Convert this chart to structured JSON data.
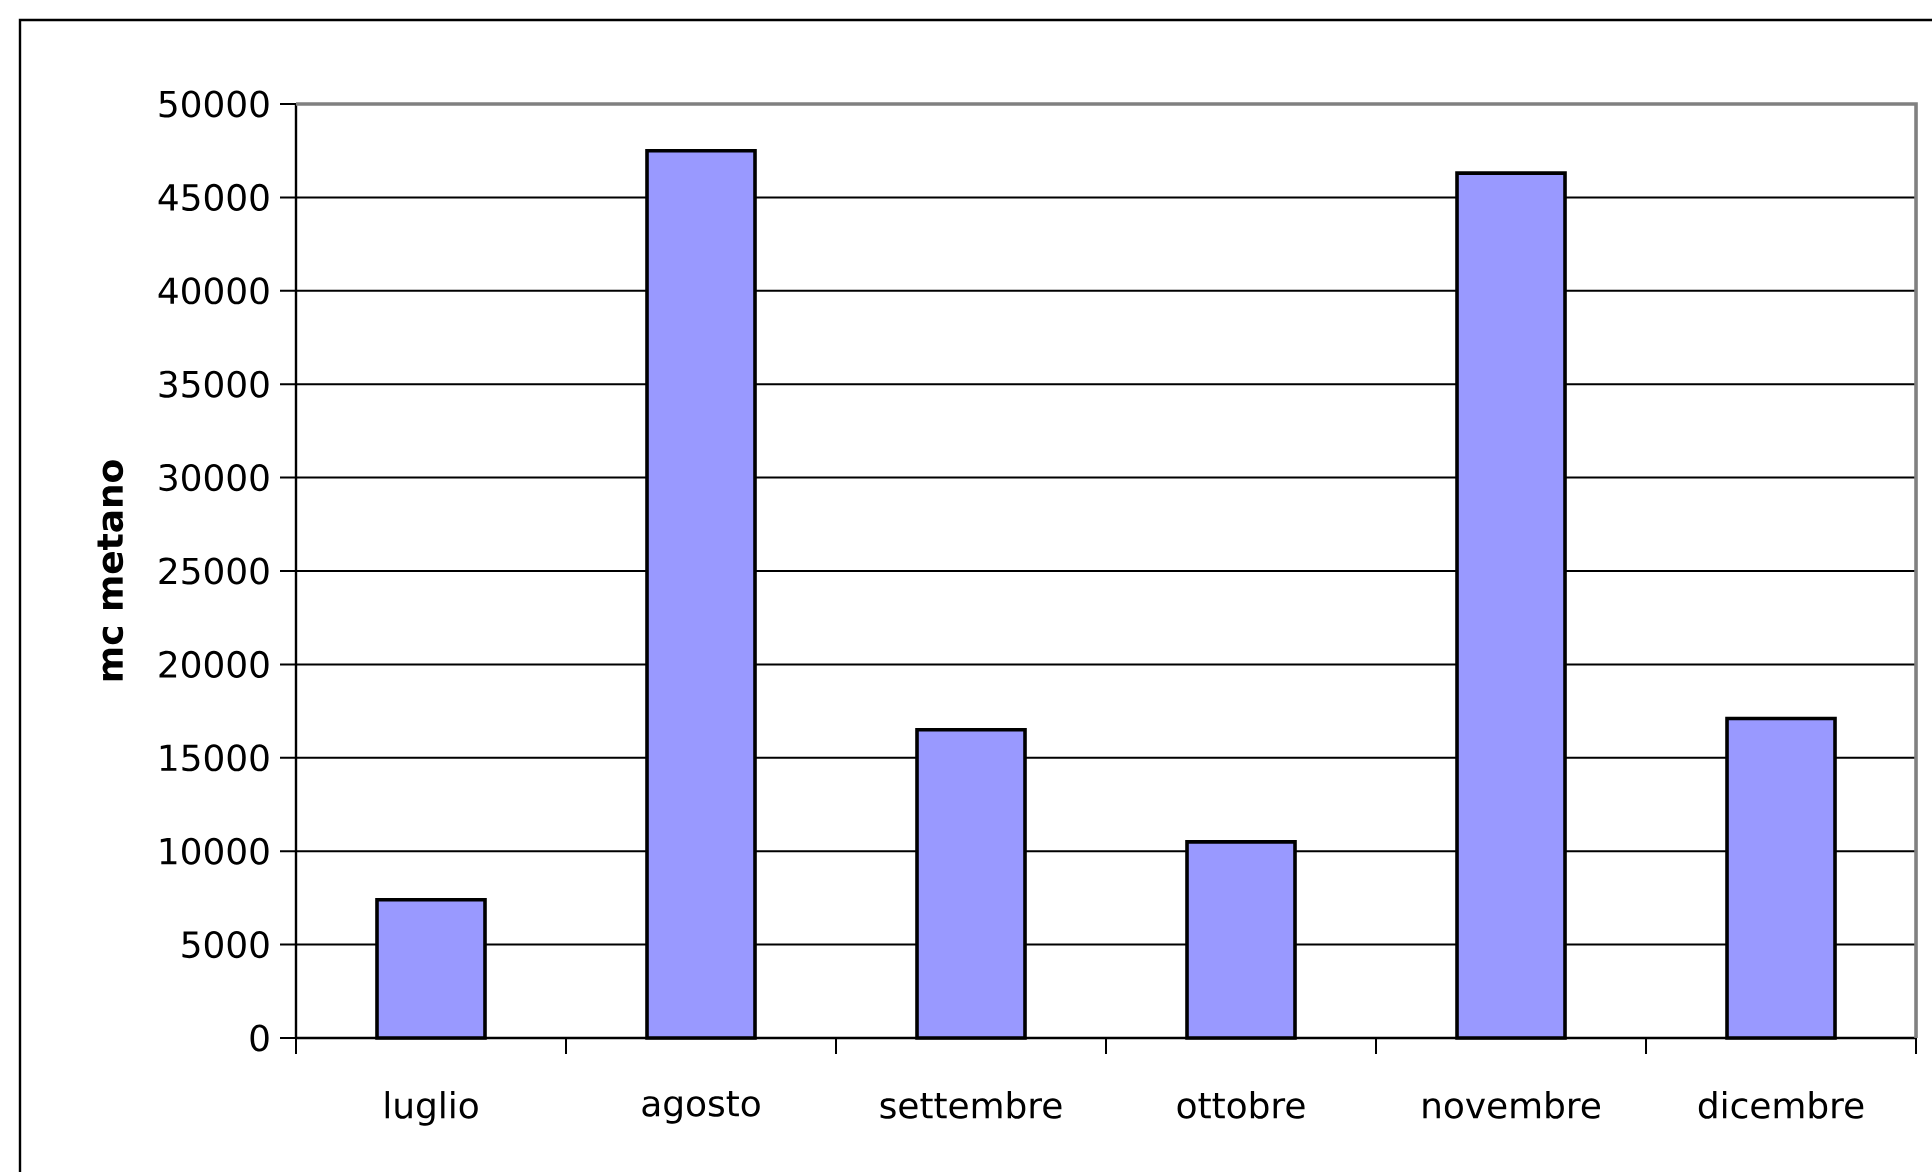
{
  "chart_data": {
    "type": "bar",
    "ylabel": "mc metano",
    "categories": [
      "luglio",
      "agosto",
      "settembre",
      "ottobre",
      "novembre",
      "dicembre"
    ],
    "values": [
      7400,
      47500,
      16500,
      10500,
      46300,
      17100
    ],
    "color": "#9999ff",
    "ylim": [
      0,
      50000
    ],
    "yticks": [
      0,
      5000,
      10000,
      15000,
      20000,
      25000,
      30000,
      35000,
      40000,
      45000,
      50000
    ],
    "grid": "y"
  }
}
